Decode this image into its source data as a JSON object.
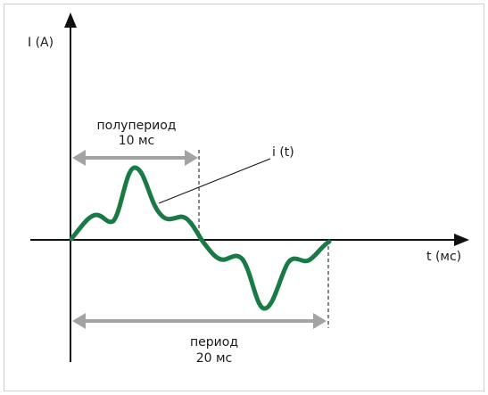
{
  "diagram": {
    "y_axis_label": "I (A)",
    "x_axis_label": "t (мс)",
    "curve_label": "i (t)",
    "half_period_label": {
      "line1": "полупериод",
      "line2": "10 мс"
    },
    "period_label": {
      "line1": "период",
      "line2": "20 мс"
    }
  },
  "colors": {
    "frame": "#cfcfcf",
    "axis": "#111111",
    "curve": "#1a7a45",
    "dimension_arrow": "#a3a3a3",
    "leader": "#111111"
  }
}
